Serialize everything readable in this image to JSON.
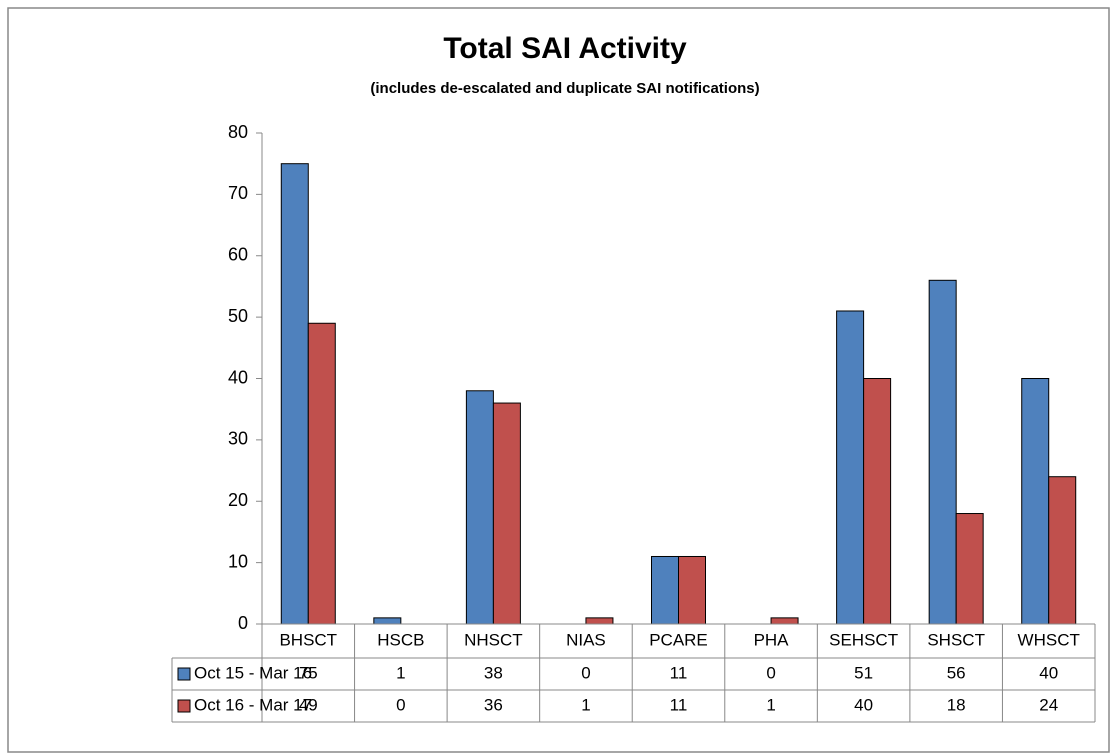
{
  "chart_data": {
    "type": "bar",
    "title": "Total SAI Activity",
    "subtitle": "(includes de-escalated  and duplicate SAI notifications)",
    "categories": [
      "BHSCT",
      "HSCB",
      "NHSCT",
      "NIAS",
      "PCARE",
      "PHA",
      "SEHSCT",
      "SHSCT",
      "WHSCT"
    ],
    "series": [
      {
        "name": "Oct 15 - Mar 16",
        "color": "#4f81bd",
        "values": [
          75,
          1,
          38,
          0,
          11,
          0,
          51,
          56,
          40
        ]
      },
      {
        "name": "Oct 16 - Mar 17",
        "color": "#c0504d",
        "values": [
          49,
          0,
          36,
          1,
          11,
          1,
          40,
          18,
          24
        ]
      }
    ],
    "ylim": [
      0,
      80
    ],
    "yticks": [
      0,
      10,
      20,
      30,
      40,
      50,
      60,
      70,
      80
    ],
    "grid": false
  }
}
